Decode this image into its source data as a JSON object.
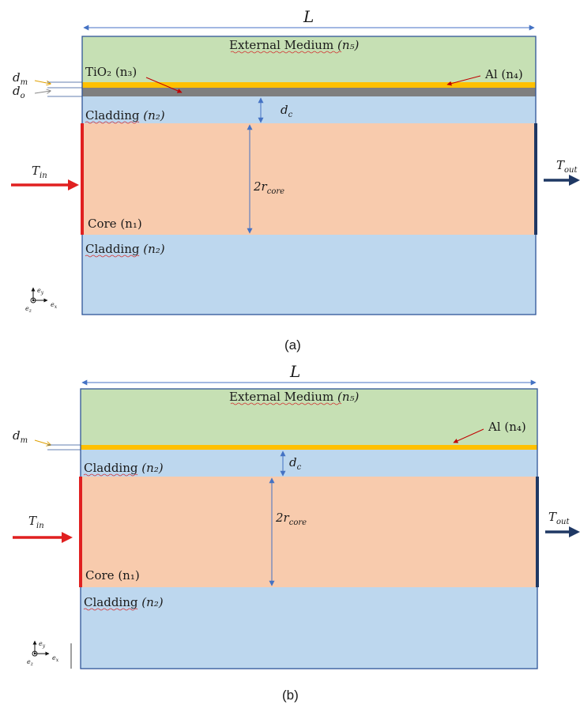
{
  "panel_a": {
    "length_label": "L",
    "external_medium": "External Medium",
    "external_index": "(n₅)",
    "tio2_label": "TiO₂ (n₃)",
    "al_label": "Al (n₄)",
    "dm_label": "d",
    "dm_sub": "m",
    "do_label": "d",
    "do_sub": "o",
    "cladding_label": "Cladding",
    "cladding_index": "(n₂)",
    "dc_label": "d",
    "dc_sub": "c",
    "core_label": "Core (n₁)",
    "core_diam_label": "2r",
    "core_diam_sub": "core",
    "tin_label": "T",
    "tin_sub": "in",
    "tout_label": "T",
    "tout_sub": "out",
    "axis_y": "e",
    "axis_y_sub": "y",
    "axis_z": "e",
    "axis_z_sub": "z",
    "axis_x": "e",
    "axis_x_sub": "x",
    "caption": "(a)"
  },
  "panel_b": {
    "length_label": "L",
    "external_medium": "External Medium",
    "external_index": "(n₅)",
    "al_label": "Al (n₄)",
    "dm_label": "d",
    "dm_sub": "m",
    "cladding_label": "Cladding",
    "cladding_index": "(n₂)",
    "dc_label": "d",
    "dc_sub": "c",
    "core_label": "Core (n₁)",
    "core_diam_label": "2r",
    "core_diam_sub": "core",
    "tin_label": "T",
    "tin_sub": "in",
    "tout_label": "T",
    "tout_sub": "out",
    "axis_y": "e",
    "axis_y_sub": "y",
    "axis_z": "e",
    "axis_z_sub": "z",
    "axis_x": "e",
    "axis_x_sub": "x",
    "caption": "(b)"
  },
  "colors": {
    "external": "#c6e0b4",
    "cladding": "#bdd7ee",
    "core": "#f8cbad",
    "aluminium": "#ffc000",
    "tio2": "#7f7f7f",
    "border": "#2f5597",
    "input": "#e02020",
    "output": "#1f3864",
    "dimension": "#4472c4"
  }
}
